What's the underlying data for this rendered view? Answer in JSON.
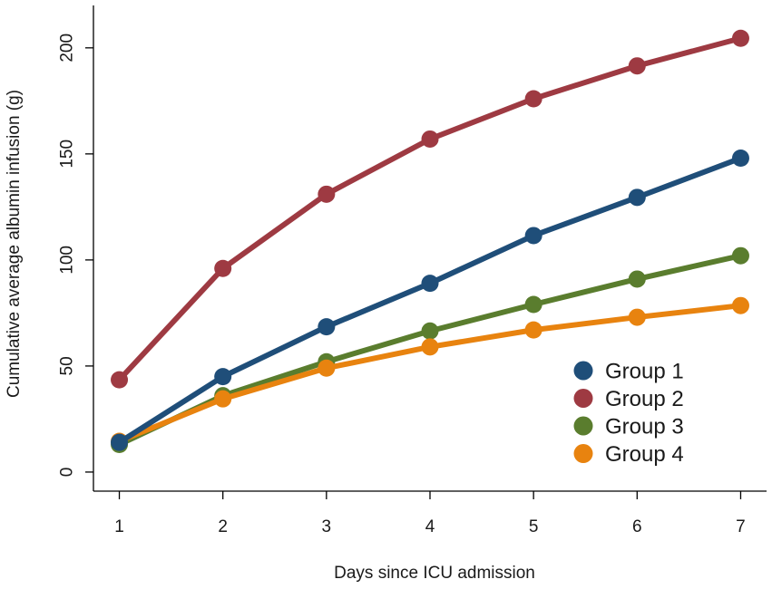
{
  "chart_data": {
    "type": "line",
    "title": "",
    "xlabel": "Days since ICU admission",
    "ylabel": "Cumulative average albumin infusion (g)",
    "x": [
      1,
      2,
      3,
      4,
      5,
      6,
      7
    ],
    "x_tick_labels": [
      "1",
      "2",
      "3",
      "4",
      "5",
      "6",
      "7"
    ],
    "y_ticks": [
      0,
      50,
      100,
      150,
      200
    ],
    "y_tick_labels": [
      "0",
      "50",
      "100",
      "150",
      "200"
    ],
    "xlim": [
      0.75,
      7.25
    ],
    "ylim": [
      -9,
      220
    ],
    "grid": false,
    "legend_position": "bottom-right",
    "series": [
      {
        "name": "Group 1",
        "color": "#1f4e79",
        "values": [
          14,
          45,
          68.5,
          89,
          111.5,
          129.5,
          148
        ]
      },
      {
        "name": "Group 2",
        "color": "#9e3a42",
        "values": [
          43.5,
          96,
          131,
          157,
          176,
          191.5,
          204.5
        ]
      },
      {
        "name": "Group 3",
        "color": "#5a7d2e",
        "values": [
          13,
          36,
          52,
          66.5,
          79,
          91,
          102
        ]
      },
      {
        "name": "Group 4",
        "color": "#e8830f",
        "values": [
          14.5,
          34.5,
          49,
          59,
          67,
          73,
          78.5
        ]
      }
    ]
  }
}
